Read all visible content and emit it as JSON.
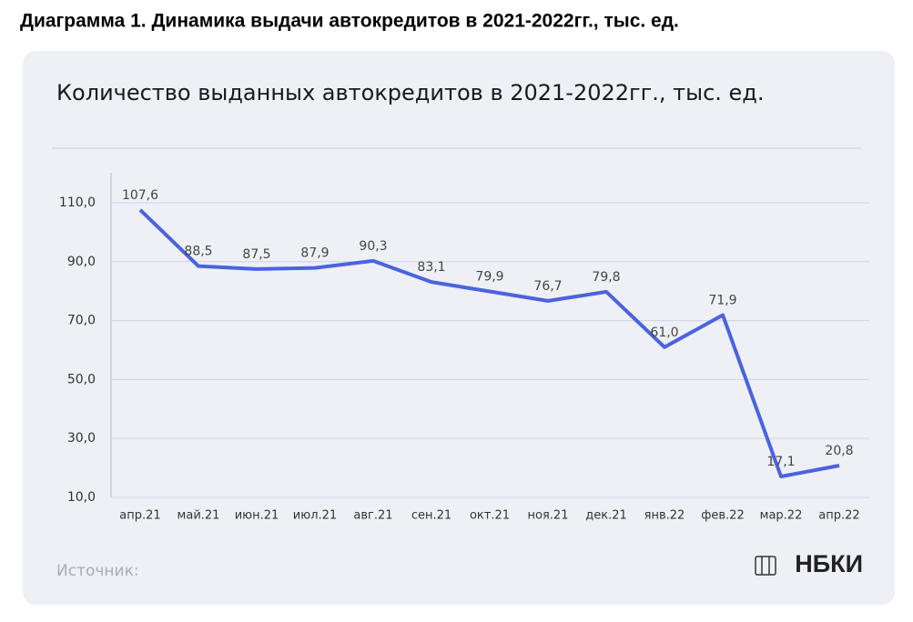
{
  "chart_data": {
    "type": "line",
    "title": "Диаграмма 1. Динамика выдачи автокредитов в 2021-2022гг., тыс. ед.",
    "subtitle": "Количество выданных  автокредитов в 2021-2022гг., тыс. ед.",
    "source": "Источник:",
    "logo": "НБКИ",
    "categories": [
      "апр.21",
      "май.21",
      "июн.21",
      "июл.21",
      "авг.21",
      "сен.21",
      "окт.21",
      "ноя.21",
      "дек.21",
      "янв.22",
      "фев.22",
      "мар.22",
      "апр.22"
    ],
    "values": [
      107.6,
      88.5,
      87.5,
      87.9,
      90.3,
      83.1,
      79.9,
      76.7,
      79.8,
      61.0,
      71.9,
      17.1,
      20.8
    ],
    "value_labels": [
      "107,6",
      "88,5",
      "87,5",
      "87,9",
      "90,3",
      "83,1",
      "79,9",
      "76,7",
      "79,8",
      "61,0",
      "71,9",
      "17,1",
      "20,8"
    ],
    "color": "#4a63e0",
    "ylim": [
      10,
      120
    ],
    "yticks": [
      {
        "value": 10,
        "label": "10,0"
      },
      {
        "value": 30,
        "label": "30,0"
      },
      {
        "value": 50,
        "label": "50,0"
      },
      {
        "value": 70,
        "label": "70,0"
      },
      {
        "value": 90,
        "label": "90,0"
      },
      {
        "value": 110,
        "label": "110,0"
      }
    ],
    "grid": true
  }
}
